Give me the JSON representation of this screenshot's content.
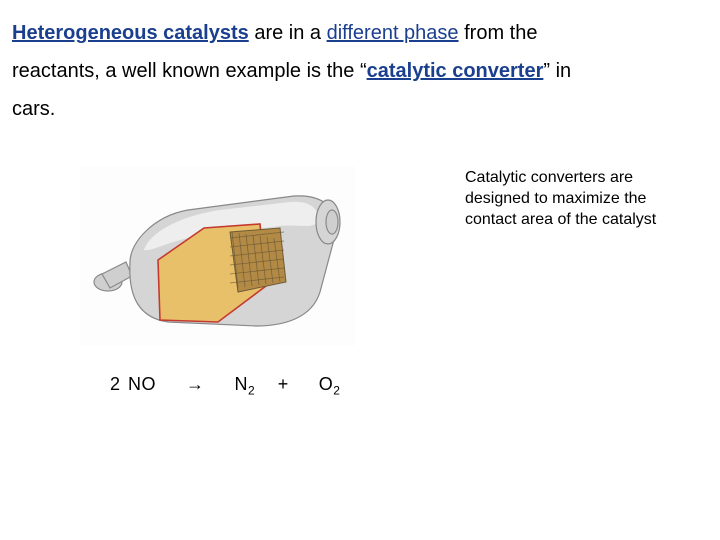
{
  "heading": {
    "hc_bold": "Heterogeneous catalysts",
    "seg1": " are in a ",
    "dp_bold": "different phase",
    "seg2": " from the",
    "line2a": "reactants, a well known example is the “",
    "cc_bold": "catalytic converter",
    "line2b": "” in",
    "line3": "cars."
  },
  "note": "Catalytic converters are designed to maximize the contact area of the catalyst",
  "equation": {
    "lhs": "2 NO",
    "arrow": "→",
    "n": "N",
    "sub2a": "2",
    "plus": "+",
    "o": "O",
    "sub2b": "2"
  },
  "figure": {
    "type": "infographic",
    "background_color": "#fdfdfd",
    "shell_fill": "#d5d5d5",
    "shell_highlight": "#f2f2f2",
    "shell_stroke": "#888888",
    "cut_fill": "#e9c06a",
    "cut_line": "#c43a2f",
    "core_fill": "#b28a46",
    "core_dark": "#6e5a34",
    "pipe_fill": "#cfcfcf",
    "pipe_stroke": "#8a8a8a",
    "stroke_width": 1.2
  }
}
